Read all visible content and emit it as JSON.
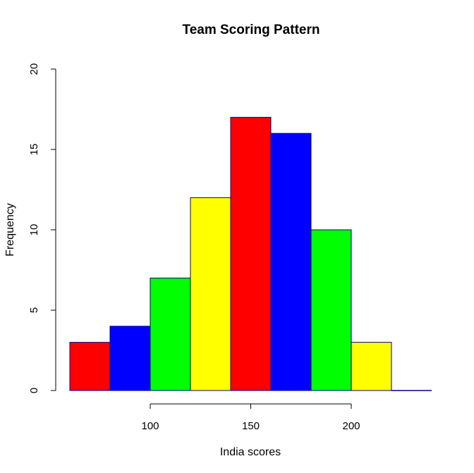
{
  "chart_data": {
    "type": "bar",
    "title": "Team Scoring Pattern",
    "xlabel": "India scores",
    "ylabel": "Frequency",
    "bins": [
      [
        60,
        80
      ],
      [
        80,
        100
      ],
      [
        100,
        120
      ],
      [
        120,
        140
      ],
      [
        140,
        160
      ],
      [
        160,
        180
      ],
      [
        180,
        200
      ],
      [
        200,
        220
      ],
      [
        220,
        240
      ]
    ],
    "values": [
      3,
      4,
      7,
      12,
      17,
      16,
      10,
      3,
      0
    ],
    "colors": [
      "#ff0000",
      "#0000ff",
      "#00ff00",
      "#ffff00",
      "#ff0000",
      "#0000ff",
      "#00ff00",
      "#ffff00",
      "#ff0000"
    ],
    "xlim": [
      60,
      240
    ],
    "ylim": [
      0,
      20
    ],
    "x_ticks": [
      100,
      150,
      200
    ],
    "y_ticks": [
      0,
      5,
      10,
      15,
      20
    ],
    "grid": false,
    "legend": "none"
  }
}
